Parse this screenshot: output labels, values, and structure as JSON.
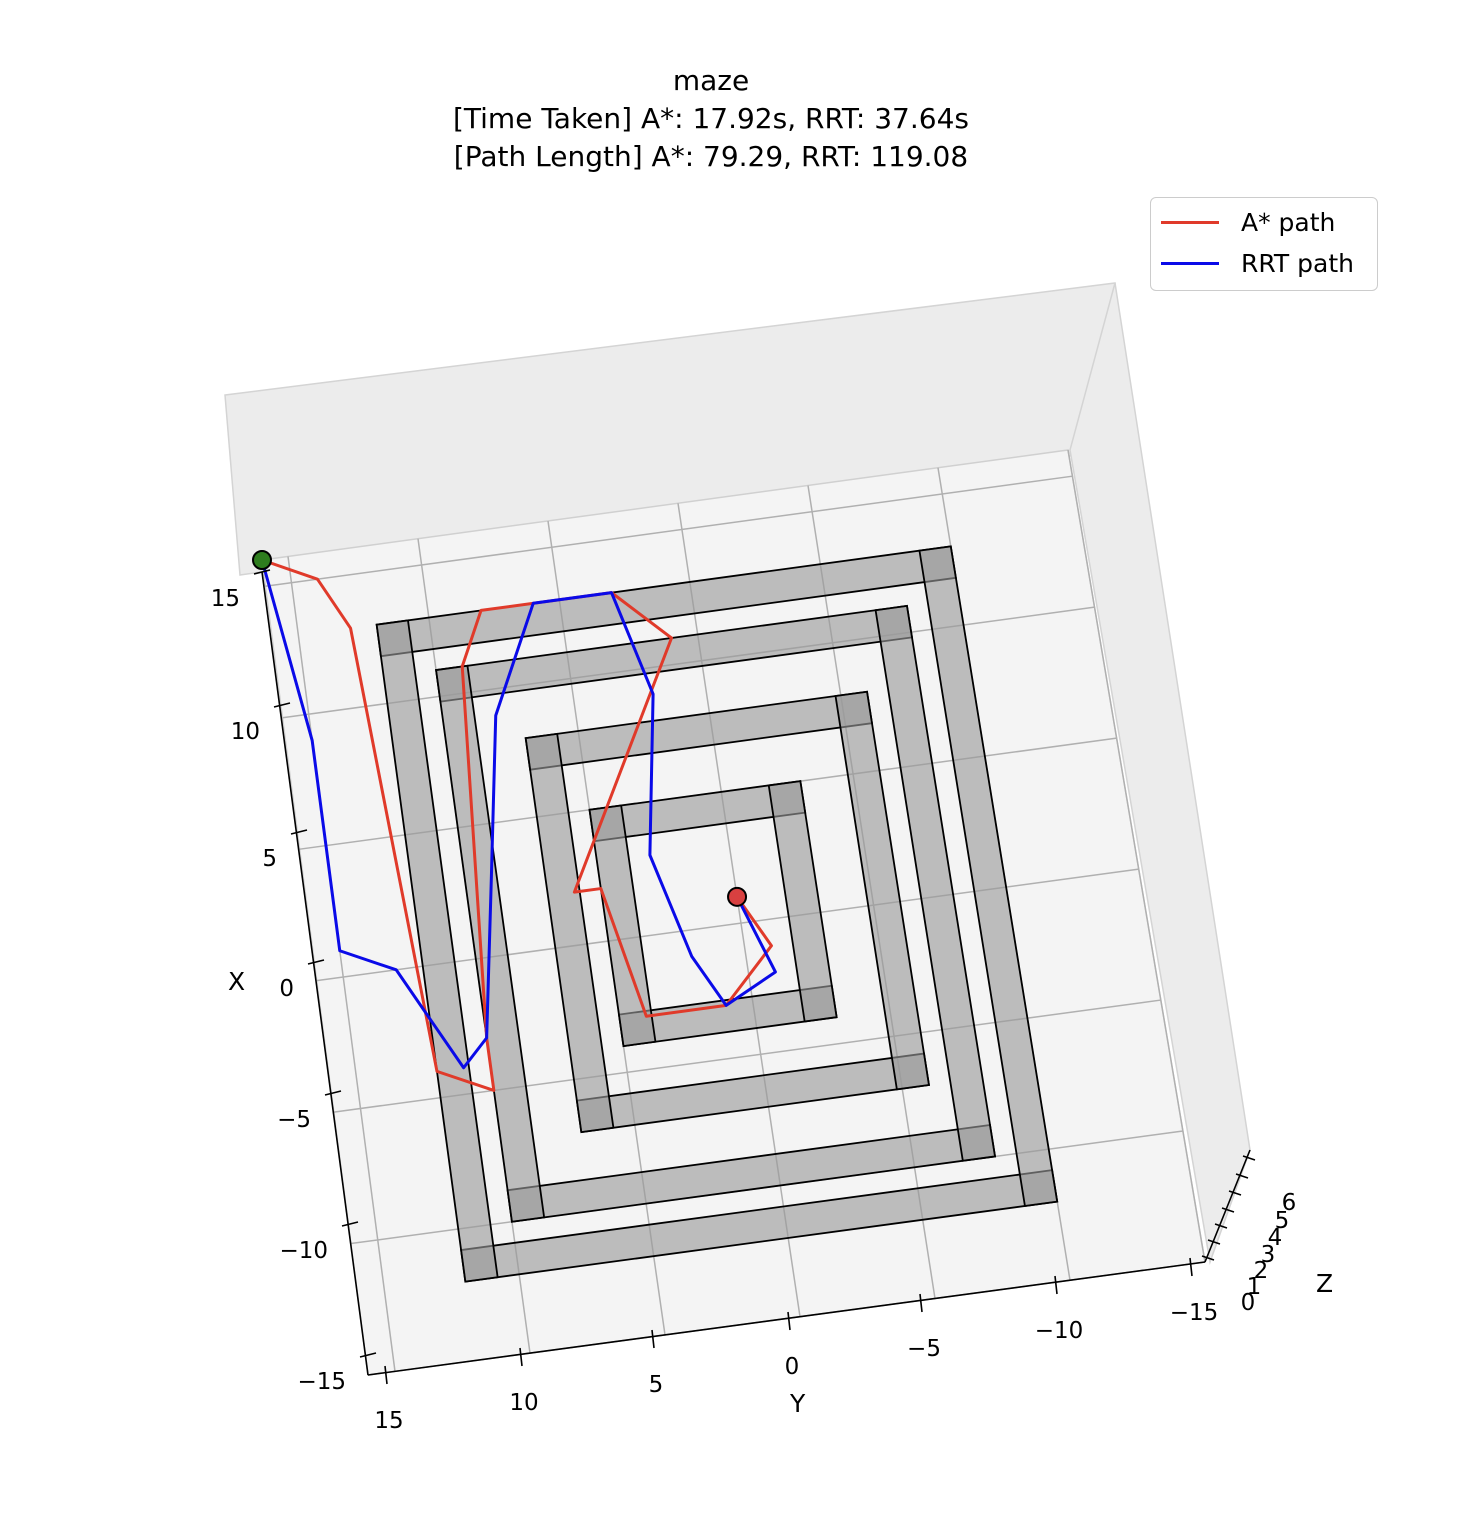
{
  "title": {
    "line1": "maze",
    "line2": "[Time Taken] A*: 17.92s, RRT: 37.64s",
    "line3": "[Path Length] A*: 79.29, RRT: 119.08"
  },
  "colors": {
    "astar": "#e03a2a",
    "rrt": "#0a0ae8",
    "wall_fill": "#a0a0a0",
    "start_marker": "#2e7d1e",
    "goal_marker": "#d84040"
  },
  "legend": {
    "astar_label": "A* path",
    "rrt_label": "RRT path",
    "placement": "upper right"
  },
  "axes": {
    "x_label": "X",
    "y_label": "Y",
    "z_label": "Z",
    "x_ticks": [
      "15",
      "10",
      "5",
      "0",
      "−5",
      "−10",
      "−15"
    ],
    "y_ticks": [
      "15",
      "10",
      "5",
      "0",
      "−5",
      "−10",
      "−15"
    ],
    "z_ticks": [
      "0",
      "1",
      "2",
      "3",
      "4",
      "5",
      "6"
    ]
  },
  "chart_data": {
    "type": "line",
    "projection": "3d",
    "xlim": [
      -15,
      16
    ],
    "ylim": [
      -15,
      16
    ],
    "zlim": [
      0,
      6
    ],
    "grid": true,
    "start_point": {
      "x": 16,
      "y": 16
    },
    "goal_point": {
      "x": 1,
      "y": 0
    },
    "series": [
      {
        "name": "A* path",
        "color": "#e03a2a",
        "points": [
          [
            16,
            16
          ],
          [
            15,
            14
          ],
          [
            13,
            13
          ],
          [
            -4,
            12
          ],
          [
            -5,
            10
          ],
          [
            -3,
            10
          ],
          [
            11,
            9
          ],
          [
            13,
            8
          ],
          [
            13,
            3
          ],
          [
            11,
            1
          ],
          [
            2,
            6
          ],
          [
            2,
            5
          ],
          [
            -3,
            4
          ],
          [
            -3,
            1
          ],
          [
            -1,
            -1
          ],
          [
            1,
            0
          ]
        ]
      },
      {
        "name": "RRT path",
        "color": "#0a0ae8",
        "points": [
          [
            16,
            16
          ],
          [
            9,
            15
          ],
          [
            5,
            15
          ],
          [
            1,
            15
          ],
          [
            0,
            13
          ],
          [
            -2,
            12
          ],
          [
            -4,
            11
          ],
          [
            -3,
            10
          ],
          [
            3,
            9
          ],
          [
            9,
            8
          ],
          [
            13,
            6
          ],
          [
            13,
            3
          ],
          [
            9,
            2
          ],
          [
            3,
            3
          ],
          [
            -1,
            2
          ],
          [
            -3,
            1
          ],
          [
            -2,
            -1
          ],
          [
            1,
            0
          ]
        ]
      }
    ]
  }
}
